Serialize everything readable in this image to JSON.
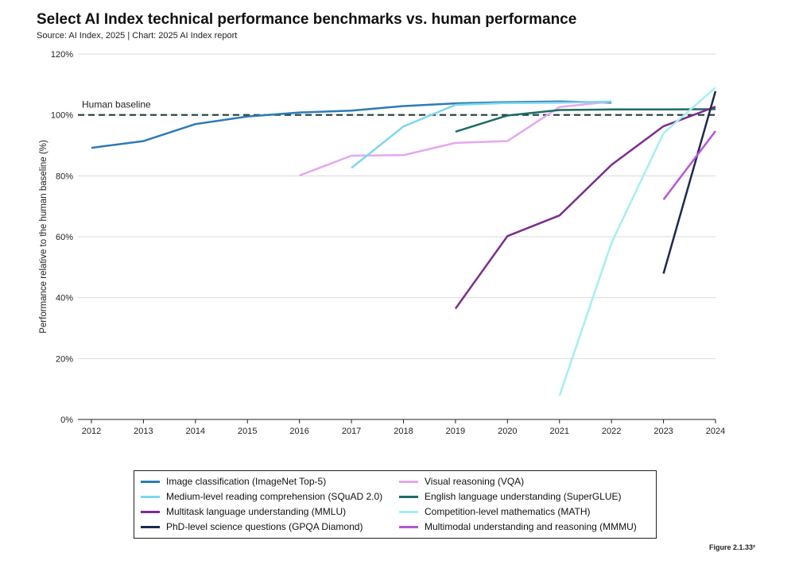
{
  "title": "Select AI Index technical performance benchmarks vs. human performance",
  "subtitle": "Source: AI Index, 2025 | Chart: 2025 AI Index report",
  "figure_label": "Figure 2.1.33²",
  "chart_data": {
    "type": "line",
    "title": "Select AI Index technical performance benchmarks vs. human performance",
    "xlabel": "",
    "ylabel": "Performance relative to the human baseline (%)",
    "xlim": [
      2012,
      2024
    ],
    "ylim": [
      0,
      120
    ],
    "x_ticks": [
      "2012",
      "2013",
      "2014",
      "2015",
      "2016",
      "2017",
      "2018",
      "2019",
      "2020",
      "2021",
      "2022",
      "2023",
      "2024"
    ],
    "y_ticks": [
      "0%",
      "20%",
      "40%",
      "60%",
      "80%",
      "100%",
      "120%"
    ],
    "y_tick_values": [
      0,
      20,
      40,
      60,
      80,
      100,
      120
    ],
    "grid": "horizontal",
    "legend_position": "bottom",
    "baseline": {
      "label": "Human baseline",
      "value": 100,
      "color": "#1d3f3a"
    },
    "series": [
      {
        "name": "Image classification (ImageNet Top-5)",
        "color": "#2c7bb6",
        "x": [
          2012,
          2013,
          2014,
          2015,
          2016,
          2017,
          2018,
          2019,
          2020,
          2021,
          2022
        ],
        "y": [
          89.2,
          91.4,
          97.0,
          99.5,
          100.8,
          101.4,
          102.9,
          103.8,
          104.2,
          104.4,
          104.0
        ]
      },
      {
        "name": "Visual reasoning (VQA)",
        "color": "#e4a8ef",
        "x": [
          2016,
          2017,
          2018,
          2019,
          2020,
          2021,
          2022
        ],
        "y": [
          80.1,
          86.6,
          86.8,
          90.8,
          91.4,
          102.6,
          104.4
        ]
      },
      {
        "name": "Medium-level reading comprehension (SQuAD 2.0)",
        "color": "#7fd6ee",
        "x": [
          2017,
          2018,
          2019,
          2020,
          2021,
          2022
        ],
        "y": [
          82.6,
          96.2,
          103.3,
          103.9,
          104.0,
          104.4
        ]
      },
      {
        "name": "English language understanding (SuperGLUE)",
        "color": "#1f6b66",
        "x": [
          2019,
          2020,
          2021,
          2022,
          2023,
          2024
        ],
        "y": [
          94.5,
          99.8,
          101.6,
          101.8,
          101.8,
          101.9
        ]
      },
      {
        "name": "Multitask language understanding (MMLU)",
        "color": "#7b2d8e",
        "x": [
          2019,
          2020,
          2021,
          2022,
          2023,
          2024
        ],
        "y": [
          36.4,
          60.2,
          67.0,
          83.6,
          96.3,
          102.7
        ]
      },
      {
        "name": "Competition-level mathematics (MATH)",
        "color": "#a6eef0",
        "x": [
          2021,
          2022,
          2023,
          2024
        ],
        "y": [
          7.8,
          58.0,
          94.0,
          109.0
        ]
      },
      {
        "name": "PhD-level science questions (GPQA Diamond)",
        "color": "#1c2a4f",
        "x": [
          2023,
          2024
        ],
        "y": [
          47.9,
          107.8
        ]
      },
      {
        "name": "Multimodal understanding and reasoning (MMMU)",
        "color": "#b556d6",
        "x": [
          2023,
          2024
        ],
        "y": [
          72.2,
          94.7
        ]
      }
    ]
  }
}
